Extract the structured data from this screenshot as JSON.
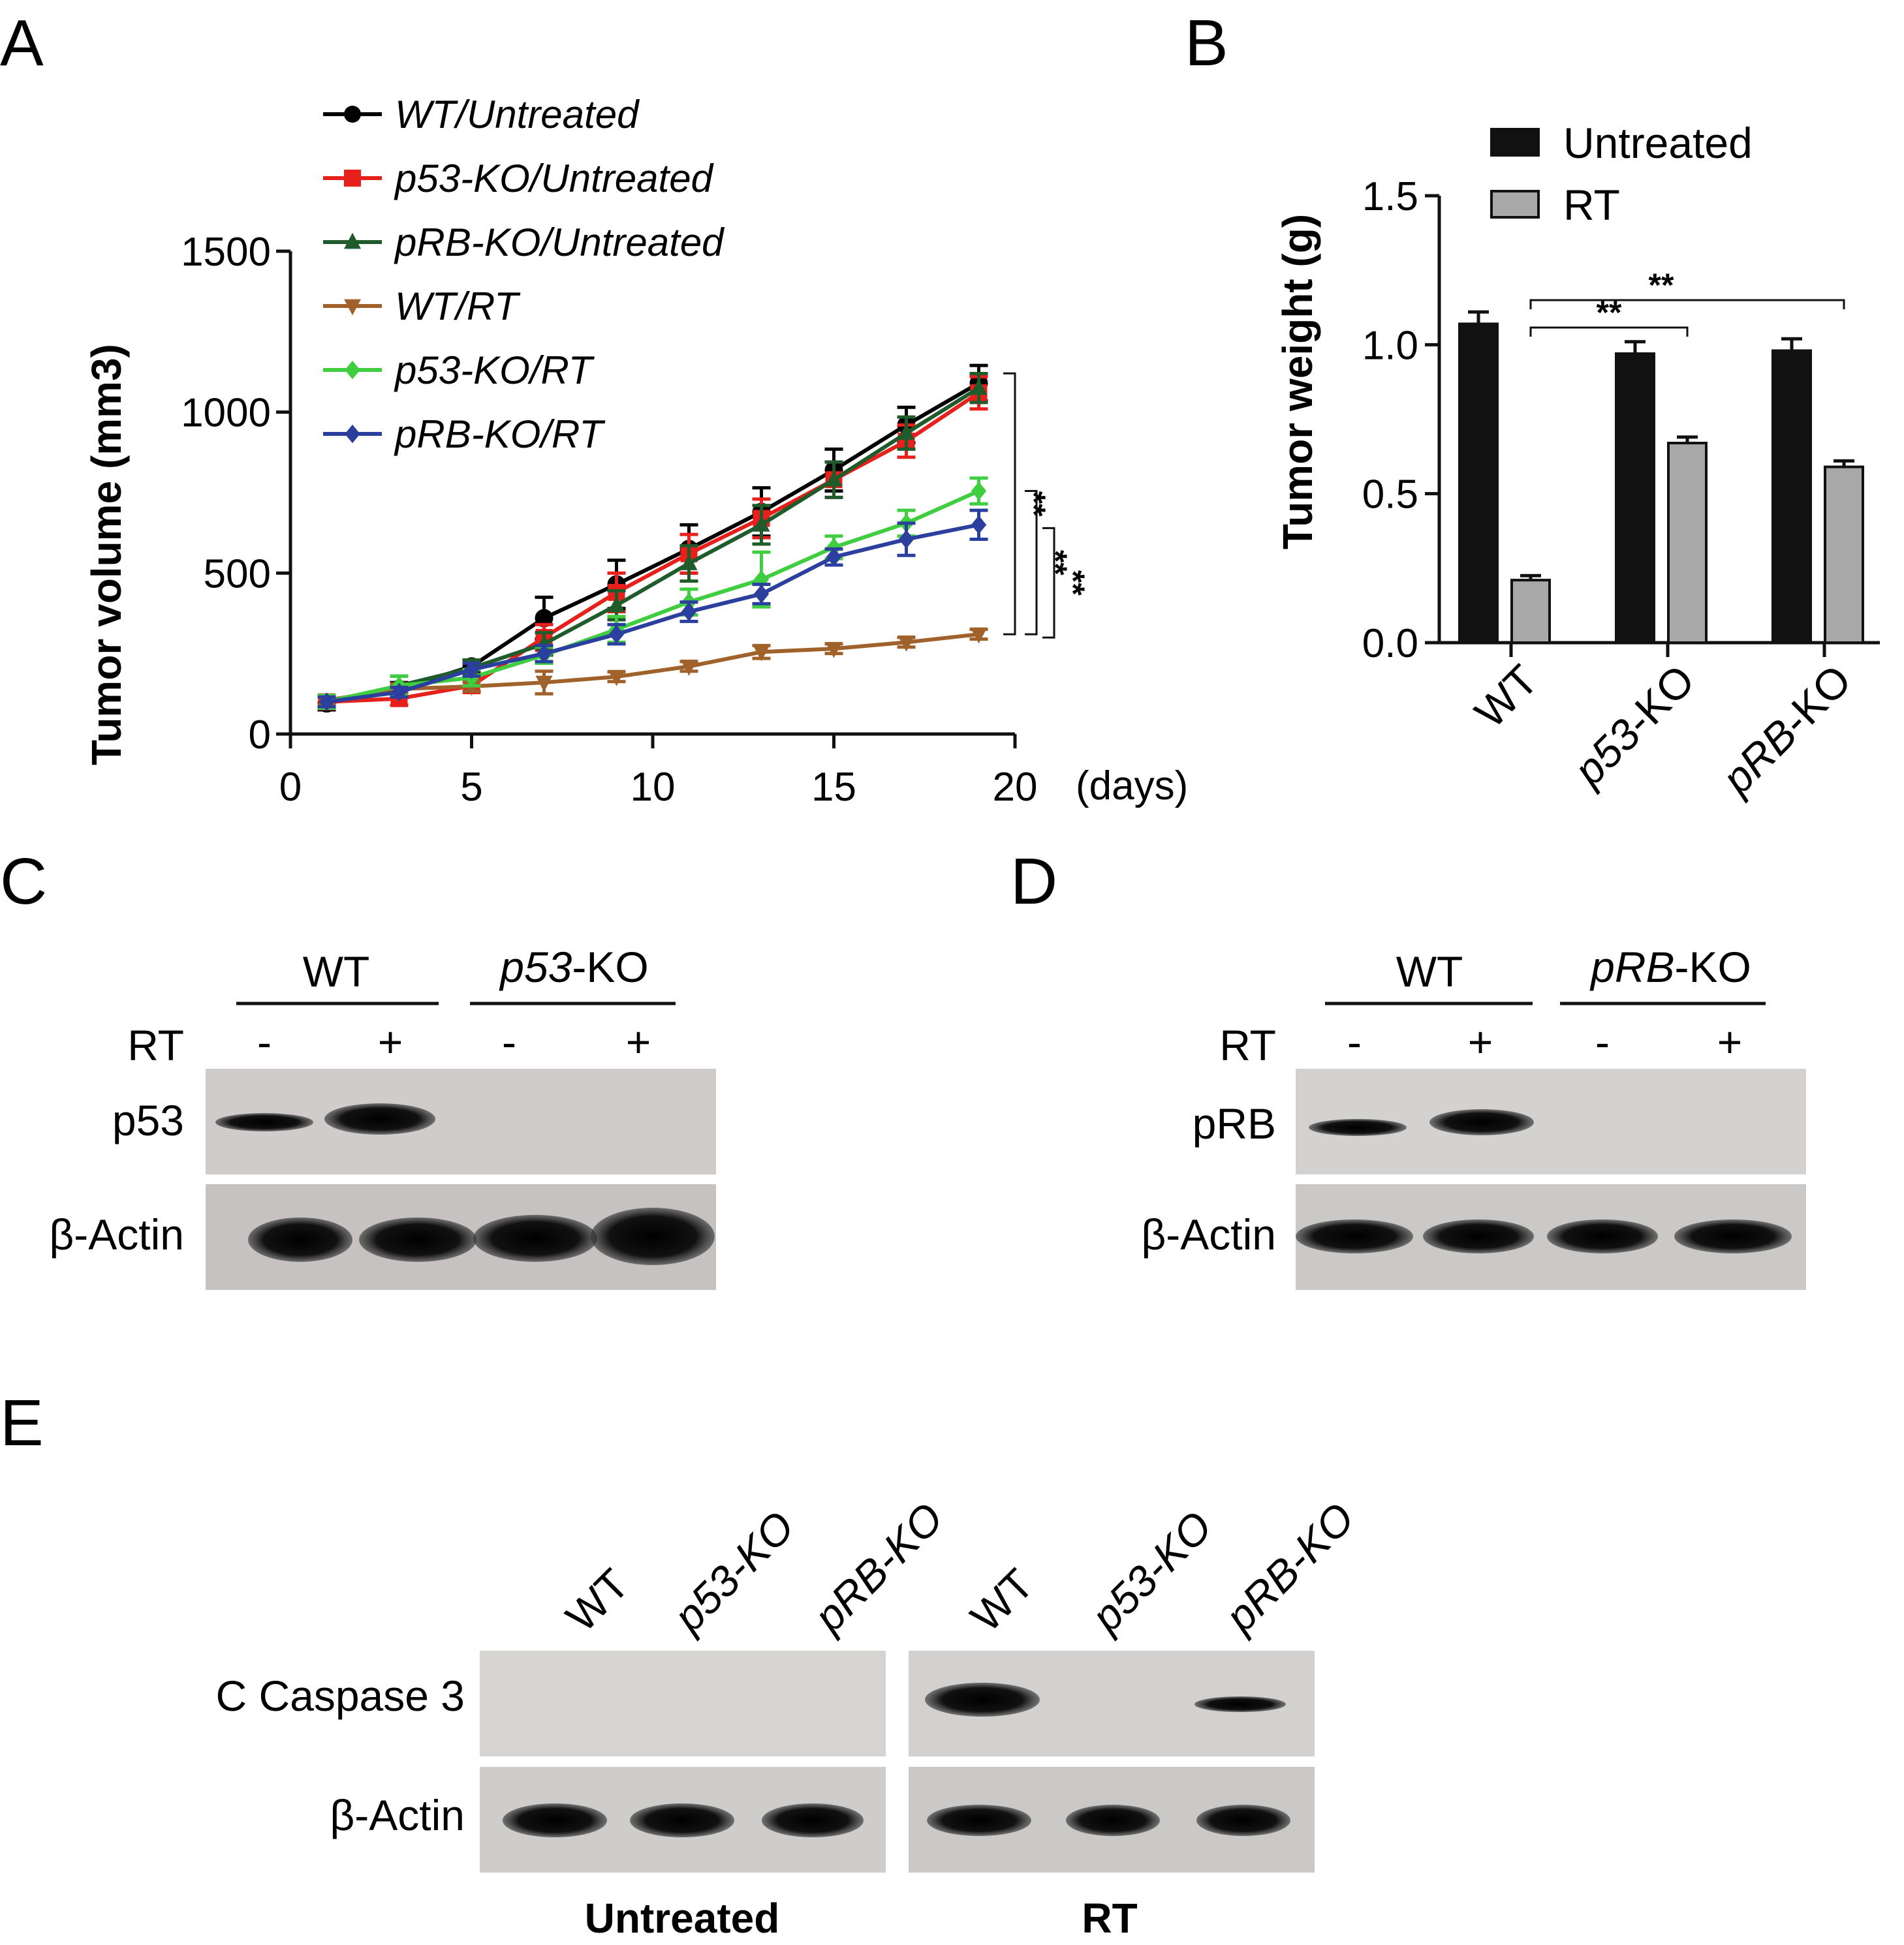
{
  "panels": {
    "a": "A",
    "b": "B",
    "c": "C",
    "d": "D",
    "e": "E"
  },
  "chart_data": [
    {
      "type": "line",
      "ylabel": "Tumor volume (mm3)",
      "xunit": "(days)",
      "xlim": [
        0,
        20
      ],
      "ylim": [
        0,
        1500
      ],
      "xticks": [
        "0",
        "5",
        "10",
        "15",
        "20"
      ],
      "yticks": [
        "0",
        "500",
        "1000",
        "1500"
      ],
      "x": [
        1,
        3,
        5,
        7,
        9,
        11,
        13,
        15,
        17,
        19
      ],
      "series": [
        {
          "name": "WT/Untreated",
          "color": "#000000",
          "marker": "circle",
          "values": [
            95,
            140,
            210,
            360,
            465,
            575,
            690,
            820,
            960,
            1090
          ],
          "errors": [
            20,
            20,
            20,
            65,
            75,
            75,
            75,
            65,
            55,
            55
          ]
        },
        {
          "name": "p53-KO/Untreated",
          "color": "#e8201c",
          "marker": "square",
          "values": [
            100,
            110,
            150,
            300,
            440,
            560,
            670,
            790,
            910,
            1060
          ],
          "errors": [
            20,
            20,
            20,
            40,
            60,
            60,
            60,
            55,
            50,
            50
          ]
        },
        {
          "name": "pRB-KO/Untreated",
          "color": "#1f5b2b",
          "marker": "triangle-up",
          "values": [
            100,
            150,
            205,
            280,
            400,
            530,
            650,
            790,
            935,
            1075
          ],
          "errors": [
            20,
            30,
            25,
            35,
            45,
            55,
            60,
            55,
            50,
            45
          ]
        },
        {
          "name": "WT/RT",
          "color": "#a0622a",
          "marker": "triangle-down",
          "values": [
            105,
            140,
            148,
            160,
            178,
            210,
            255,
            265,
            285,
            310
          ],
          "errors": [
            15,
            15,
            15,
            35,
            15,
            15,
            20,
            15,
            15,
            15
          ]
        },
        {
          "name": "p53-KO/RT",
          "color": "#3fce3f",
          "marker": "diamond",
          "values": [
            100,
            150,
            175,
            245,
            325,
            410,
            480,
            580,
            655,
            755
          ],
          "errors": [
            20,
            30,
            25,
            25,
            40,
            40,
            85,
            35,
            40,
            40
          ]
        },
        {
          "name": "pRB-KO/RT",
          "color": "#2a3f9e",
          "marker": "diamond",
          "values": [
            100,
            130,
            200,
            250,
            310,
            380,
            435,
            550,
            605,
            650
          ],
          "errors": [
            15,
            15,
            20,
            25,
            30,
            30,
            30,
            25,
            50,
            45
          ]
        }
      ],
      "significance": [
        "**",
        "**",
        "**"
      ]
    },
    {
      "type": "bar",
      "ylabel": "Tumor weight (g)",
      "categories": [
        "WT",
        "p53-KO",
        "pRB-KO"
      ],
      "ylim": [
        0,
        1.5
      ],
      "yticks": [
        "0.0",
        "0.5",
        "1.0",
        "1.5"
      ],
      "series": [
        {
          "name": "Untreated",
          "color": "#111111",
          "values": [
            1.07,
            0.97,
            0.98
          ],
          "errors": [
            0.04,
            0.04,
            0.04
          ]
        },
        {
          "name": "RT",
          "color": "#a8a8a8",
          "values": [
            0.21,
            0.67,
            0.59
          ],
          "errors": [
            0.015,
            0.02,
            0.02
          ]
        }
      ],
      "significance": [
        "**",
        "**"
      ]
    }
  ],
  "blot_c": {
    "groups": [
      "WT",
      "p53-KO"
    ],
    "treatment_label": "RT",
    "lanes": [
      "-",
      "+",
      "-",
      "+"
    ],
    "rows": [
      "p53",
      "β-Actin"
    ]
  },
  "blot_d": {
    "groups": [
      "WT",
      "pRB-KO"
    ],
    "treatment_label": "RT",
    "lanes": [
      "-",
      "+",
      "-",
      "+"
    ],
    "rows": [
      "pRB",
      "β-Actin"
    ]
  },
  "blot_e": {
    "lanes": [
      "WT",
      "p53-KO",
      "pRB-KO",
      "WT",
      "p53-KO",
      "pRB-KO"
    ],
    "rows": [
      "C Caspase 3",
      "β-Actin"
    ],
    "conditions": [
      "Untreated",
      "RT"
    ]
  }
}
